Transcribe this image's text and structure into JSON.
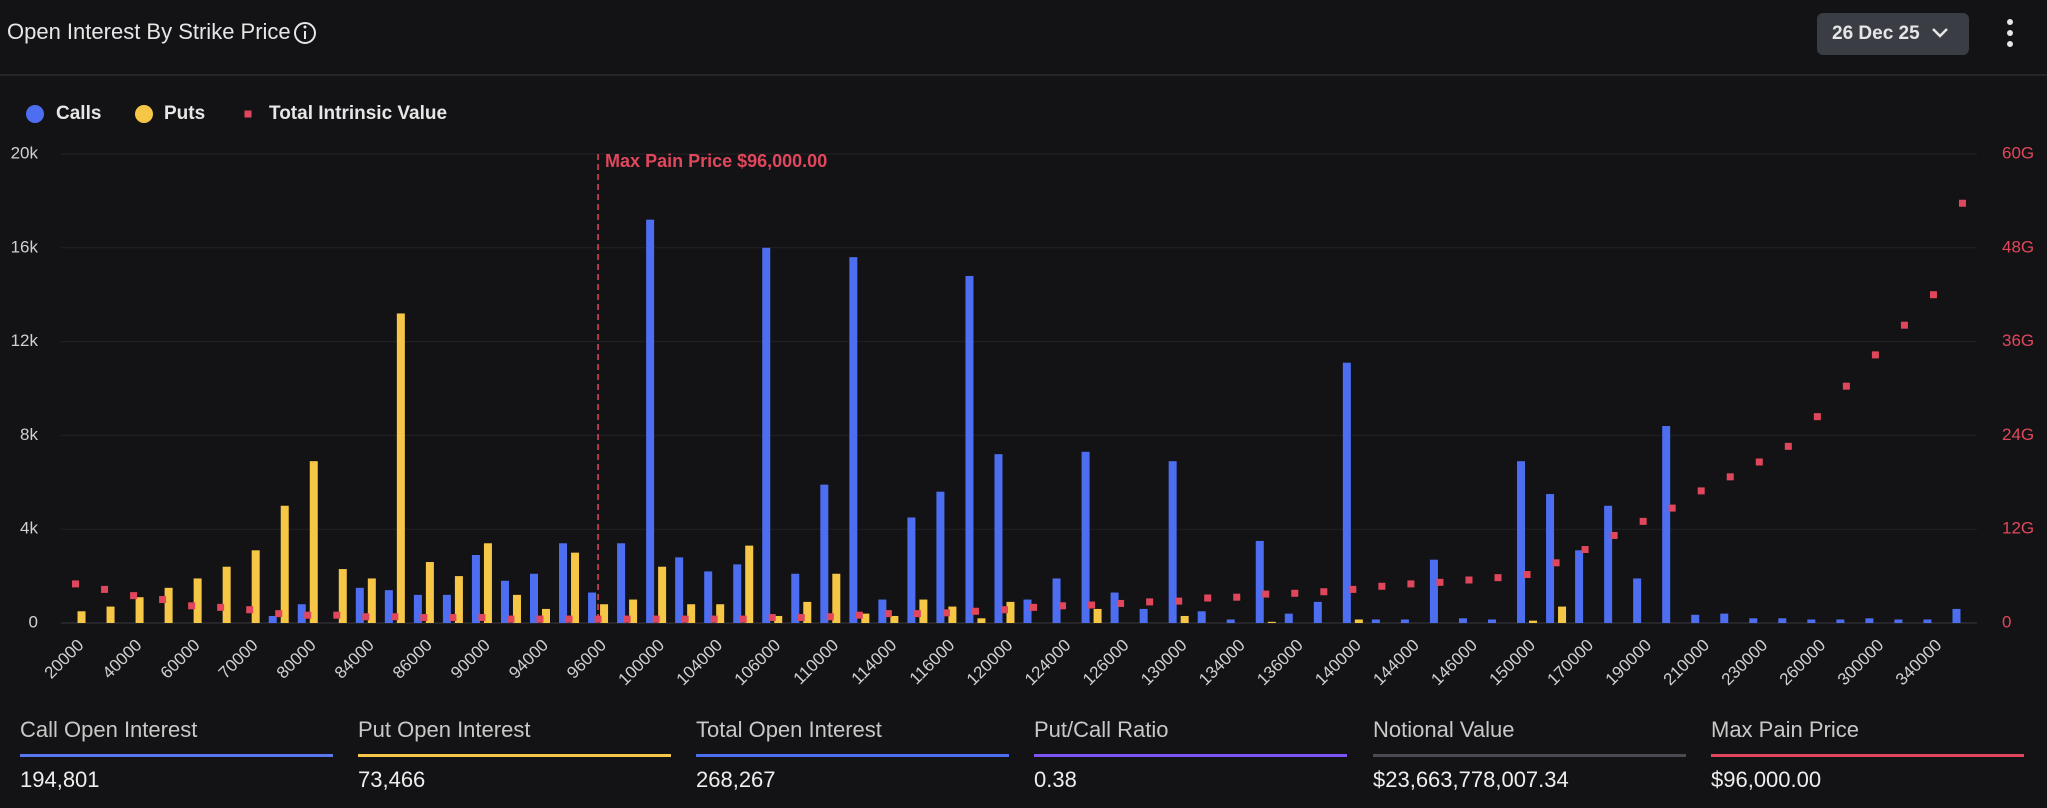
{
  "header": {
    "title": "Open Interest By Strike Price",
    "expiry": "26 Dec 25"
  },
  "chart_data": {
    "type": "bar",
    "categories": [
      "20000",
      null,
      "40000",
      null,
      "60000",
      null,
      "70000",
      null,
      "80000",
      null,
      "84000",
      null,
      "86000",
      null,
      "90000",
      null,
      "94000",
      null,
      "96000",
      null,
      "100000",
      null,
      "104000",
      null,
      "106000",
      null,
      "110000",
      null,
      "114000",
      null,
      "116000",
      null,
      "120000",
      null,
      "124000",
      null,
      "126000",
      null,
      "130000",
      null,
      "134000",
      null,
      "136000",
      null,
      "140000",
      null,
      "144000",
      null,
      "146000",
      null,
      "150000",
      null,
      "170000",
      null,
      "190000",
      null,
      "210000",
      null,
      "230000",
      null,
      "260000",
      null,
      "300000",
      null,
      "340000",
      null
    ],
    "series": [
      {
        "name": "Calls",
        "color": "#4d6ef0",
        "values": [
          0,
          0,
          0,
          0,
          0,
          0,
          0,
          300,
          800,
          0,
          1500,
          1400,
          1200,
          1200,
          2900,
          1800,
          2100,
          3400,
          1300,
          3400,
          17200,
          2800,
          2200,
          2500,
          16000,
          2100,
          5900,
          15600,
          1000,
          4500,
          5600,
          14800,
          7200,
          1000,
          1900,
          7300,
          1300,
          600,
          6900,
          500,
          150,
          3500,
          400,
          900,
          11100,
          150,
          150,
          2700,
          200,
          150,
          6900,
          5500,
          3100,
          5000,
          1900,
          8400,
          350,
          400,
          200,
          200,
          150,
          150,
          200,
          150,
          150,
          600
        ]
      },
      {
        "name": "Puts",
        "color": "#f6c746",
        "values": [
          500,
          700,
          1100,
          1500,
          1900,
          2400,
          3100,
          5000,
          6900,
          2300,
          1900,
          13200,
          2600,
          2000,
          3400,
          1200,
          600,
          3000,
          800,
          1000,
          2400,
          800,
          800,
          3300,
          300,
          900,
          2100,
          400,
          300,
          1000,
          700,
          200,
          900,
          0,
          0,
          600,
          0,
          0,
          300,
          0,
          0,
          50,
          0,
          0,
          150,
          0,
          0,
          0,
          0,
          0,
          100,
          700,
          0,
          0,
          0,
          0,
          0,
          0,
          0,
          0,
          0,
          0,
          0,
          0,
          0,
          0
        ]
      },
      {
        "name": "Total Intrinsic Value",
        "color": "#e0475c",
        "axis": "y2",
        "type": "scatter",
        "values": [
          5.0,
          4.3,
          3.5,
          3.0,
          2.2,
          2.0,
          1.7,
          1.2,
          1.0,
          1.0,
          0.8,
          0.8,
          0.7,
          0.7,
          0.7,
          0.5,
          0.5,
          0.5,
          0.5,
          0.5,
          0.5,
          0.5,
          0.5,
          0.5,
          0.7,
          0.7,
          0.8,
          1.0,
          1.2,
          1.2,
          1.3,
          1.5,
          1.7,
          2.0,
          2.2,
          2.3,
          2.5,
          2.7,
          2.8,
          3.2,
          3.3,
          3.7,
          3.8,
          4.0,
          4.3,
          4.7,
          5.0,
          5.2,
          5.5,
          5.8,
          6.2,
          7.7,
          9.4,
          11.2,
          13.0,
          14.7,
          16.9,
          18.7,
          20.6,
          22.6,
          26.4,
          30.3,
          34.3,
          38.1,
          42.0,
          53.7
        ]
      }
    ],
    "ylim": [
      0,
      20000
    ],
    "yticks": [
      0,
      {
        "value": 4000,
        "label": "4k"
      },
      {
        "value": 8000,
        "label": "8k"
      },
      {
        "value": 12000,
        "label": "12k"
      },
      {
        "value": 16000,
        "label": "16k"
      },
      {
        "value": 20000,
        "label": "20k"
      }
    ],
    "y2lim": [
      0,
      60
    ],
    "y2ticks": [
      0,
      {
        "value": 12,
        "label": "12G"
      },
      {
        "value": 24,
        "label": "24G"
      },
      {
        "value": 36,
        "label": "36G"
      },
      {
        "value": 48,
        "label": "48G"
      },
      {
        "value": 60,
        "label": "60G"
      }
    ],
    "grid": true,
    "legend": "top-left",
    "annotation": {
      "text": "Max Pain Price $96,000.00",
      "category": "96000",
      "color": "#e0475c"
    }
  },
  "stats": [
    {
      "label": "Call Open Interest",
      "value": "194,801",
      "color": "#5a78ee"
    },
    {
      "label": "Put Open Interest",
      "value": "73,466",
      "color": "#f6c746"
    },
    {
      "label": "Total Open Interest",
      "value": "268,267",
      "color": "#4d6ef0"
    },
    {
      "label": "Put/Call Ratio",
      "value": "0.38",
      "color": "#7d55f2"
    },
    {
      "label": "Notional Value",
      "value": "$23,663,778,007.34",
      "color": "#4a4a50"
    },
    {
      "label": "Max Pain Price",
      "value": "$96,000.00",
      "color": "#e0475c"
    }
  ]
}
